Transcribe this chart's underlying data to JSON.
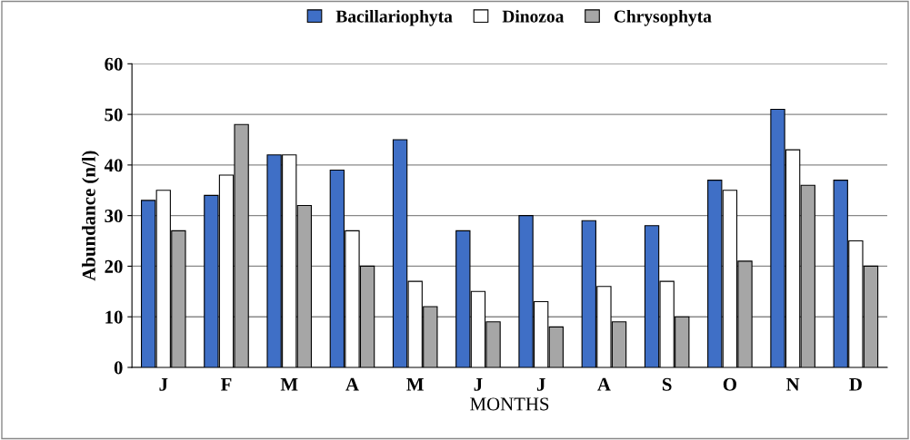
{
  "chart_data": {
    "type": "bar",
    "xlabel": "MONTHS",
    "ylabel": "Abundance (n/l)",
    "categories": [
      "J",
      "F",
      "M",
      "A",
      "M",
      "J",
      "J",
      "A",
      "S",
      "O",
      "N",
      "D"
    ],
    "series": [
      {
        "name": "Bacillariophyta",
        "color": "#3f6fc6",
        "values": [
          33,
          34,
          42,
          39,
          45,
          27,
          30,
          29,
          28,
          37,
          51,
          37
        ]
      },
      {
        "name": "Dinozoa",
        "color": "#ffffff",
        "values": [
          35,
          38,
          42,
          27,
          17,
          15,
          13,
          16,
          17,
          35,
          43,
          25
        ]
      },
      {
        "name": "Chrysophyta",
        "color": "#a6a6a6",
        "values": [
          27,
          48,
          32,
          20,
          12,
          9,
          8,
          9,
          10,
          21,
          36,
          20
        ]
      }
    ],
    "ylim": [
      0,
      60
    ],
    "yticks": [
      0,
      10,
      20,
      30,
      40,
      50,
      60
    ],
    "grid": "y",
    "legend": "top"
  }
}
